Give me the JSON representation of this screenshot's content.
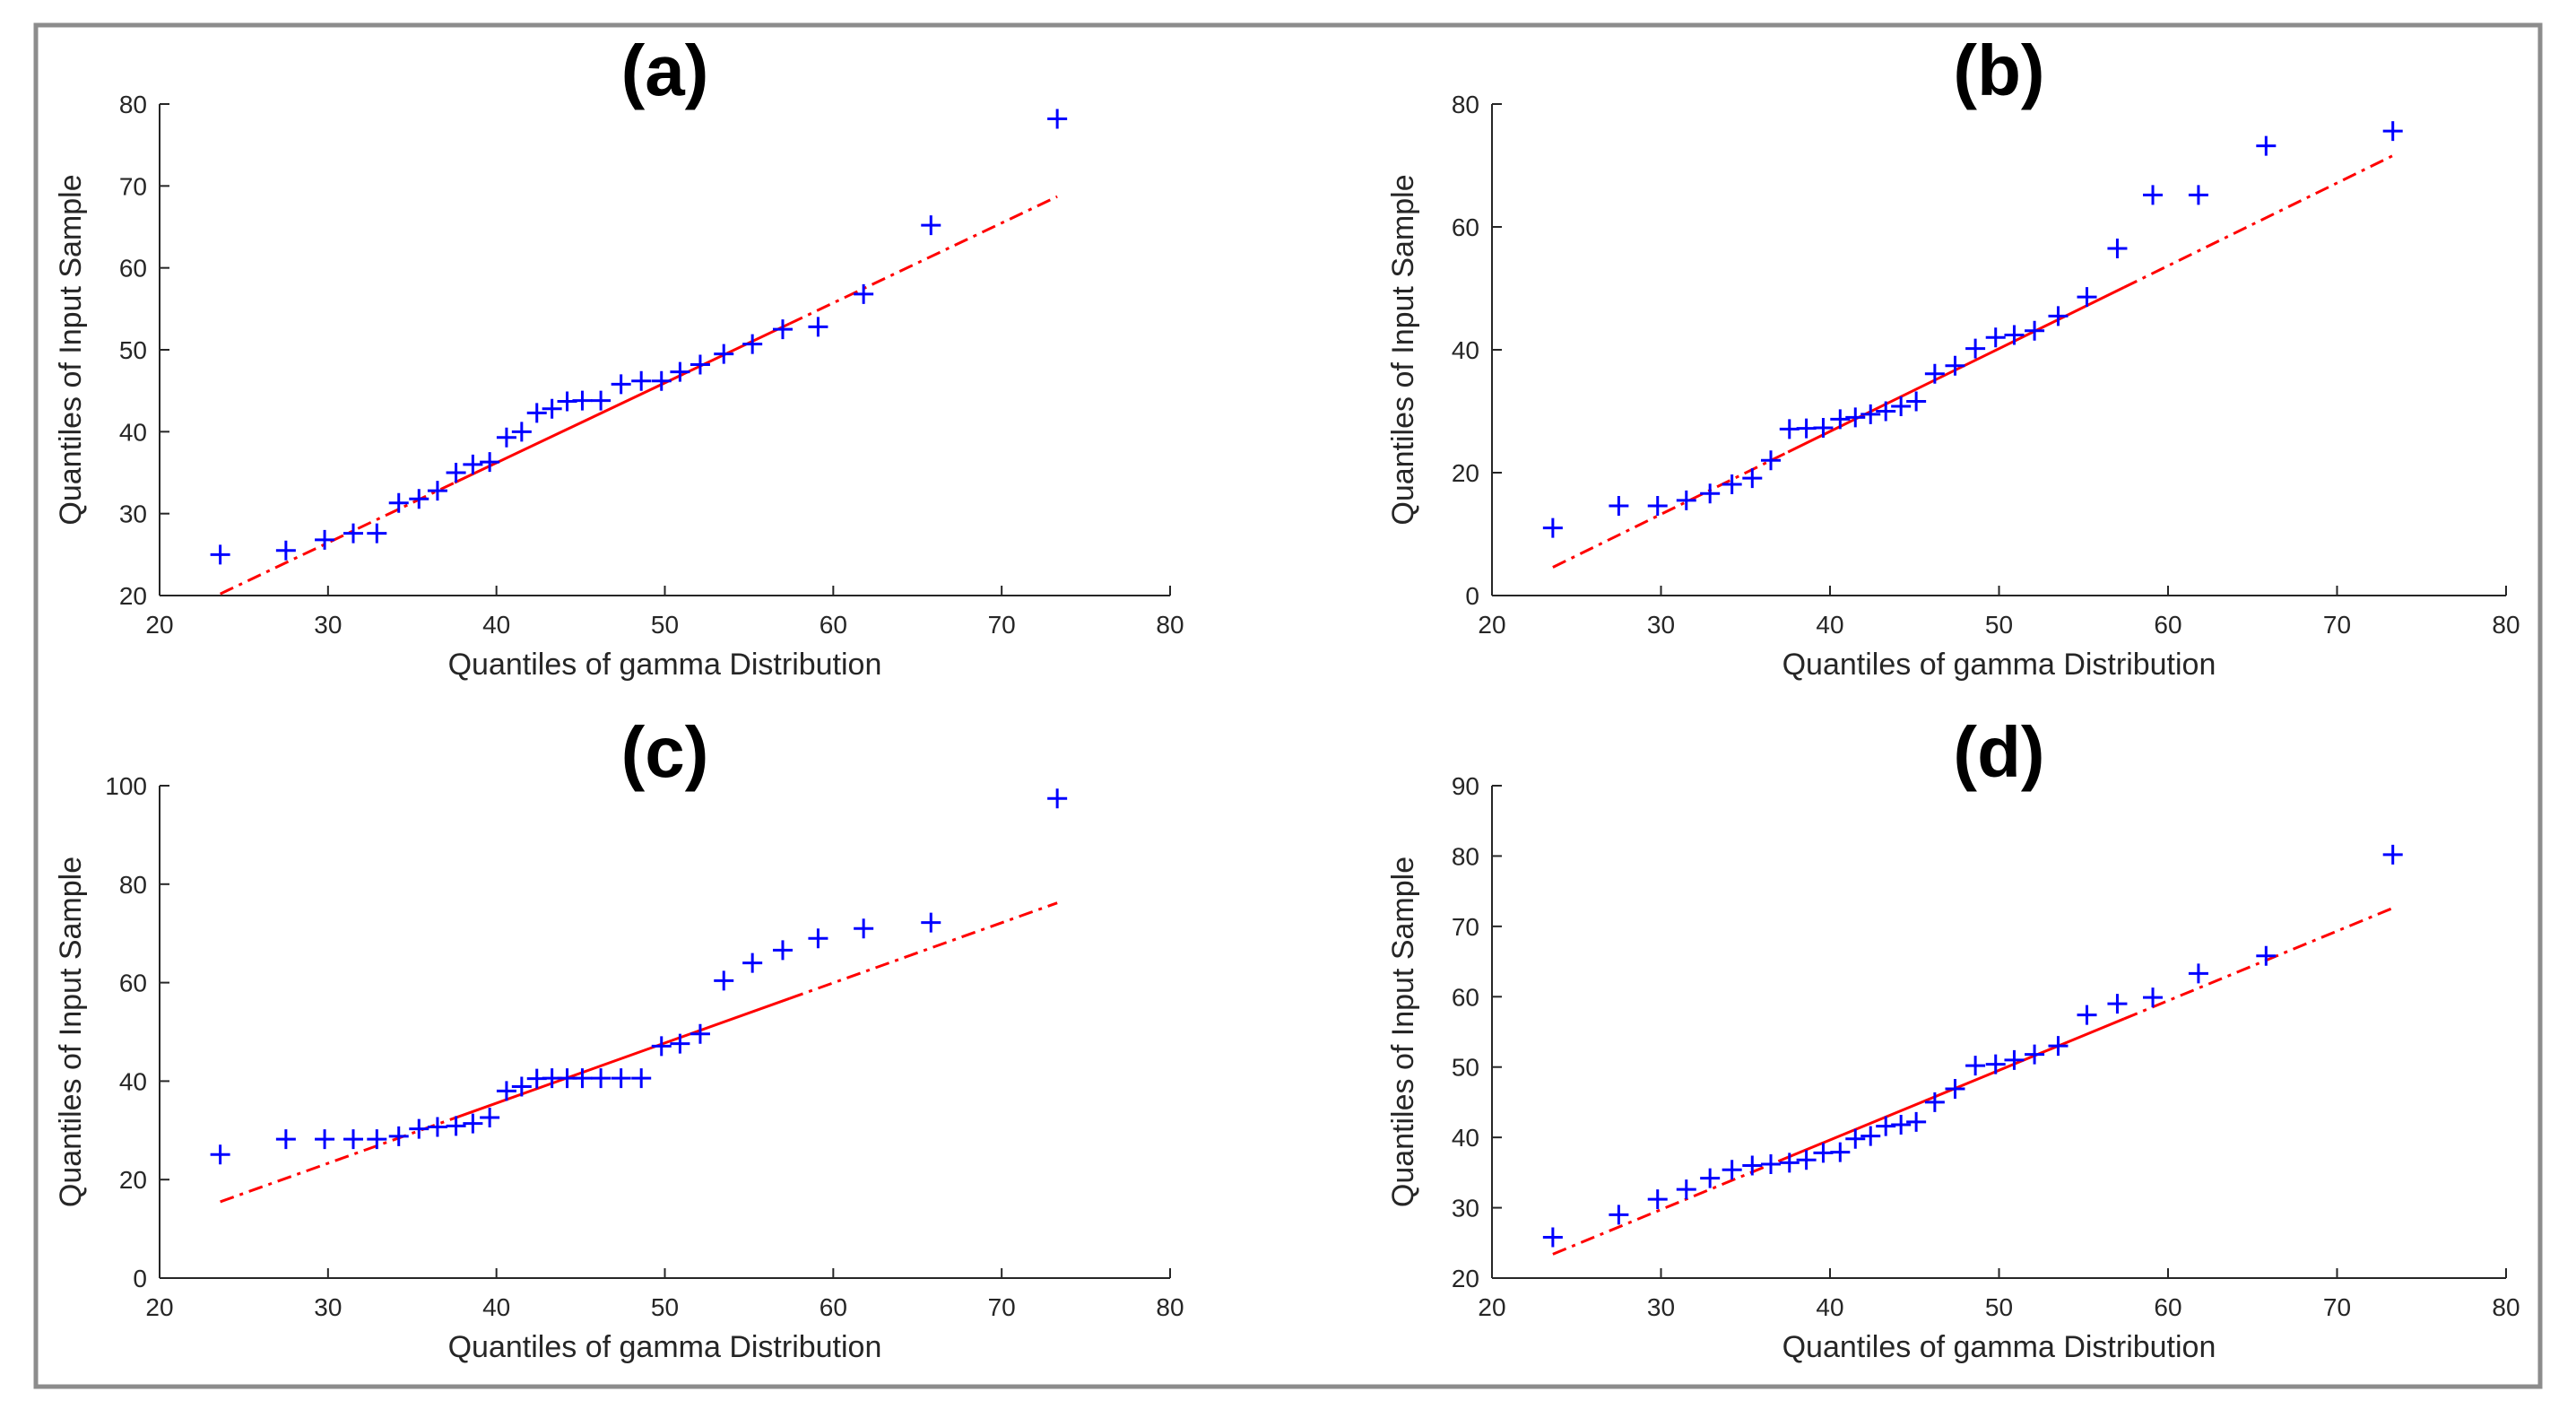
{
  "colors": {
    "markers": "#0000ff",
    "fit_line": "#ff0000",
    "axis": "#262626",
    "frame": "#8c8c8c"
  },
  "chart_data": [
    {
      "type": "scatter",
      "title": "(a)",
      "xlabel": "Quantiles of gamma Distribution",
      "ylabel": "Quantiles of Input Sample",
      "xlim": [
        20,
        80
      ],
      "ylim": [
        20,
        80
      ],
      "xticks": [
        20,
        30,
        40,
        50,
        60,
        70,
        80
      ],
      "yticks": [
        20,
        30,
        40,
        50,
        60,
        70,
        80
      ],
      "grid": false,
      "marker": "plus",
      "points": [
        [
          23.6,
          25
        ],
        [
          27.5,
          25.5
        ],
        [
          29.8,
          26.8
        ],
        [
          31.5,
          27.6
        ],
        [
          32.9,
          27.6
        ],
        [
          34.2,
          31.3
        ],
        [
          35.4,
          31.8
        ],
        [
          36.5,
          32.8
        ],
        [
          37.6,
          35
        ],
        [
          38.6,
          36
        ],
        [
          39.6,
          36.3
        ],
        [
          40.6,
          39.3
        ],
        [
          41.5,
          40
        ],
        [
          42.4,
          42.3
        ],
        [
          43.3,
          42.8
        ],
        [
          44.2,
          43.7
        ],
        [
          45.1,
          43.8
        ],
        [
          46.2,
          43.8
        ],
        [
          47.4,
          45.8
        ],
        [
          48.6,
          46.2
        ],
        [
          49.8,
          46.2
        ],
        [
          50.9,
          47.3
        ],
        [
          52.1,
          48.2
        ],
        [
          53.5,
          49.5
        ],
        [
          55.2,
          50.7
        ],
        [
          57,
          52.5
        ],
        [
          59.1,
          52.8
        ],
        [
          61.8,
          56.8
        ],
        [
          65.8,
          65.2
        ],
        [
          73.3,
          78.2
        ]
      ],
      "fit_line": {
        "style": "dash-dot",
        "from": [
          23.6,
          20.2
        ],
        "to": [
          73.3,
          68.7
        ]
      }
    },
    {
      "type": "scatter",
      "title": "(b)",
      "xlabel": "Quantiles of gamma Distribution",
      "ylabel": "Quantiles of Input Sample",
      "xlim": [
        20,
        80
      ],
      "ylim": [
        0,
        80
      ],
      "xticks": [
        20,
        30,
        40,
        50,
        60,
        70,
        80
      ],
      "yticks": [
        0,
        20,
        40,
        60,
        80
      ],
      "grid": false,
      "marker": "plus",
      "points": [
        [
          23.6,
          11
        ],
        [
          27.5,
          14.6
        ],
        [
          29.8,
          14.6
        ],
        [
          31.5,
          15.5
        ],
        [
          32.9,
          16.6
        ],
        [
          34.2,
          18.1
        ],
        [
          35.4,
          19.1
        ],
        [
          36.5,
          22
        ],
        [
          37.6,
          27.1
        ],
        [
          38.6,
          27.2
        ],
        [
          39.6,
          27.3
        ],
        [
          40.6,
          28.7
        ],
        [
          41.5,
          29
        ],
        [
          42.4,
          29.5
        ],
        [
          43.3,
          30
        ],
        [
          44.2,
          30.8
        ],
        [
          45.1,
          31.6
        ],
        [
          46.2,
          36.1
        ],
        [
          47.4,
          37.4
        ],
        [
          48.6,
          40.2
        ],
        [
          49.8,
          42
        ],
        [
          50.9,
          42.4
        ],
        [
          52.1,
          43.1
        ],
        [
          53.5,
          45.5
        ],
        [
          55.2,
          48.6
        ],
        [
          57,
          56.5
        ],
        [
          59.1,
          65.2
        ],
        [
          61.8,
          65.2
        ],
        [
          65.8,
          73.2
        ],
        [
          73.3,
          75.6
        ]
      ],
      "fit_line": {
        "style": "dash-dot",
        "from": [
          23.6,
          4.6
        ],
        "to": [
          73.3,
          71.6
        ]
      }
    },
    {
      "type": "scatter",
      "title": "(c)",
      "xlabel": "Quantiles of gamma Distribution",
      "ylabel": "Quantiles of Input Sample",
      "xlim": [
        20,
        80
      ],
      "ylim": [
        0,
        100
      ],
      "xticks": [
        20,
        30,
        40,
        50,
        60,
        70,
        80
      ],
      "yticks": [
        0,
        20,
        40,
        60,
        80,
        100
      ],
      "grid": false,
      "marker": "plus",
      "points": [
        [
          23.6,
          25.1
        ],
        [
          27.5,
          28.2
        ],
        [
          29.8,
          28.2
        ],
        [
          31.5,
          28.2
        ],
        [
          32.9,
          28.2
        ],
        [
          34.2,
          28.8
        ],
        [
          35.4,
          30.3
        ],
        [
          36.5,
          30.7
        ],
        [
          37.6,
          30.9
        ],
        [
          38.6,
          31.4
        ],
        [
          39.6,
          32.6
        ],
        [
          40.6,
          38
        ],
        [
          41.5,
          38.9
        ],
        [
          42.4,
          40.5
        ],
        [
          43.3,
          40.6
        ],
        [
          44.2,
          40.6
        ],
        [
          45.1,
          40.6
        ],
        [
          46.2,
          40.6
        ],
        [
          47.4,
          40.6
        ],
        [
          48.6,
          40.6
        ],
        [
          49.8,
          47.1
        ],
        [
          50.9,
          47.6
        ],
        [
          52.1,
          49.6
        ],
        [
          53.5,
          60.4
        ],
        [
          55.2,
          64
        ],
        [
          57,
          66.6
        ],
        [
          59.1,
          69
        ],
        [
          61.8,
          71
        ],
        [
          65.8,
          72.2
        ],
        [
          73.3,
          97.4
        ]
      ],
      "fit_line": {
        "style": "dash-dot",
        "from": [
          23.6,
          15.5
        ],
        "to": [
          73.3,
          76.2
        ]
      }
    },
    {
      "type": "scatter",
      "title": "(d)",
      "xlabel": "Quantiles of gamma Distribution",
      "ylabel": "Quantiles of Input Sample",
      "xlim": [
        20,
        80
      ],
      "ylim": [
        20,
        90
      ],
      "xticks": [
        20,
        30,
        40,
        50,
        60,
        70,
        80
      ],
      "yticks": [
        20,
        30,
        40,
        50,
        60,
        70,
        80,
        90
      ],
      "grid": false,
      "marker": "plus",
      "points": [
        [
          23.6,
          25.8
        ],
        [
          27.5,
          29
        ],
        [
          29.8,
          31.2
        ],
        [
          31.5,
          32.6
        ],
        [
          32.9,
          34.2
        ],
        [
          34.2,
          35.4
        ],
        [
          35.4,
          36
        ],
        [
          36.5,
          36.2
        ],
        [
          37.6,
          36.4
        ],
        [
          38.6,
          36.8
        ],
        [
          39.6,
          37.8
        ],
        [
          40.6,
          37.9
        ],
        [
          41.5,
          39.8
        ],
        [
          42.4,
          40.2
        ],
        [
          43.3,
          41.6
        ],
        [
          44.2,
          41.8
        ],
        [
          45.1,
          42.2
        ],
        [
          46.2,
          45
        ],
        [
          47.4,
          46.9
        ],
        [
          48.6,
          50.2
        ],
        [
          49.8,
          50.4
        ],
        [
          50.9,
          51
        ],
        [
          52.1,
          51.8
        ],
        [
          53.5,
          53
        ],
        [
          55.2,
          57.4
        ],
        [
          57,
          59
        ],
        [
          59.1,
          59.9
        ],
        [
          61.8,
          63.3
        ],
        [
          65.8,
          65.8
        ],
        [
          73.3,
          80.2
        ]
      ],
      "fit_line": {
        "style": "dash-dot",
        "from": [
          23.6,
          23.4
        ],
        "to": [
          73.3,
          72.6
        ]
      }
    }
  ]
}
